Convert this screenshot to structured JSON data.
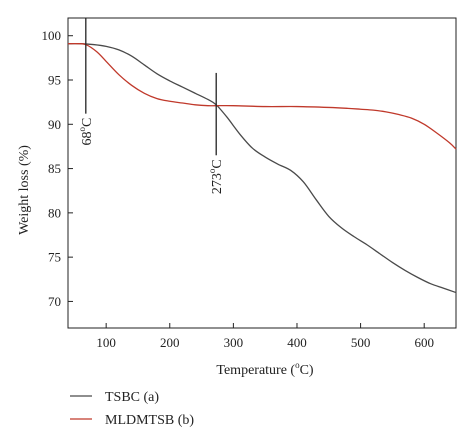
{
  "chart_data": {
    "type": "line",
    "title": "",
    "xlabel": "Temperature (",
    "xlabel_sup": "o",
    "xlabel_tail": "C)",
    "ylabel": "Weight loss (%)",
    "xlim": [
      40,
      650
    ],
    "ylim": [
      67,
      102
    ],
    "xticks": [
      100,
      200,
      300,
      400,
      500,
      600
    ],
    "yticks": [
      70,
      75,
      80,
      85,
      90,
      95,
      100
    ],
    "xtick_labels": [
      "100",
      "200",
      "300",
      "400",
      "500",
      "600"
    ],
    "ytick_labels": [
      "70",
      "75",
      "80",
      "85",
      "90",
      "95",
      "100"
    ],
    "grid": false,
    "legend_position": "bottom-left, below plot",
    "series": [
      {
        "name": "TSBC (a)",
        "color": "#4a4a4a",
        "x": [
          40,
          60,
          80,
          100,
          120,
          140,
          160,
          180,
          200,
          220,
          240,
          260,
          273,
          290,
          310,
          330,
          350,
          370,
          390,
          410,
          430,
          450,
          470,
          490,
          510,
          530,
          550,
          570,
          590,
          610,
          630,
          650
        ],
        "y": [
          99.1,
          99.1,
          99.0,
          98.8,
          98.4,
          97.7,
          96.7,
          95.7,
          94.9,
          94.2,
          93.5,
          92.8,
          92.2,
          90.8,
          88.9,
          87.3,
          86.3,
          85.5,
          84.8,
          83.5,
          81.5,
          79.6,
          78.3,
          77.3,
          76.4,
          75.4,
          74.4,
          73.5,
          72.7,
          72.0,
          71.5,
          71.0
        ]
      },
      {
        "name": "MLDMTSB (b)",
        "color": "#c0392b",
        "x": [
          40,
          55,
          68,
          85,
          100,
          120,
          140,
          160,
          180,
          200,
          220,
          240,
          260,
          273,
          300,
          350,
          400,
          450,
          480,
          500,
          520,
          540,
          560,
          580,
          600,
          620,
          640,
          650
        ],
        "y": [
          99.1,
          99.1,
          99.0,
          98.2,
          97.1,
          95.6,
          94.4,
          93.5,
          92.9,
          92.6,
          92.4,
          92.2,
          92.1,
          92.1,
          92.1,
          92.0,
          92.0,
          91.9,
          91.8,
          91.7,
          91.6,
          91.4,
          91.1,
          90.7,
          90.0,
          89.0,
          87.9,
          87.2
        ]
      }
    ],
    "annotations": [
      {
        "label": "68",
        "sup": "o",
        "tail": "C",
        "x": 68,
        "y_top": 102,
        "y_bottom": 91.2
      },
      {
        "label": "273",
        "sup": "o",
        "tail": "C",
        "x": 273,
        "y_top": 95.8,
        "y_bottom": 86.5
      }
    ]
  }
}
